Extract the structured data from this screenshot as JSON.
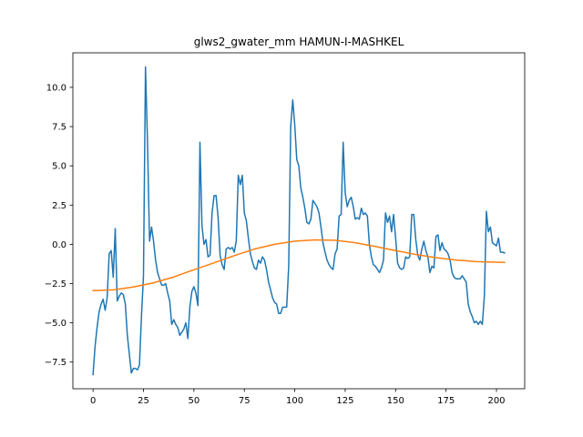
{
  "chart_data": {
    "type": "line",
    "title": "glws2_gwater_mm HAMUN-I-MASHKEL",
    "xlabel": "",
    "ylabel": "",
    "xlim": [
      -10,
      214
    ],
    "ylim": [
      -9.2,
      12.2
    ],
    "xticks": [
      0,
      25,
      50,
      75,
      100,
      125,
      150,
      175,
      200
    ],
    "yticks": [
      -7.5,
      -5.0,
      -2.5,
      0.0,
      2.5,
      5.0,
      7.5,
      10.0
    ],
    "ytick_labels": [
      "−7.5",
      "−5.0",
      "−2.5",
      "0.0",
      "2.5",
      "5.0",
      "7.5",
      "10.0"
    ],
    "grid": false,
    "series": [
      {
        "color": "#1f77b4",
        "points": [
          [
            0,
            -8.3
          ],
          [
            1,
            -6.5
          ],
          [
            2,
            -5.3
          ],
          [
            3,
            -4.3
          ],
          [
            4,
            -3.8
          ],
          [
            5,
            -3.5
          ],
          [
            6,
            -4.2
          ],
          [
            7,
            -3.4
          ],
          [
            8,
            -0.6
          ],
          [
            9,
            -0.4
          ],
          [
            10,
            -2.1
          ],
          [
            11,
            1.0
          ],
          [
            12,
            -3.6
          ],
          [
            13,
            -3.3
          ],
          [
            14,
            -3.1
          ],
          [
            15,
            -3.2
          ],
          [
            16,
            -3.8
          ],
          [
            17,
            -5.8
          ],
          [
            18,
            -7.0
          ],
          [
            19,
            -8.2
          ],
          [
            20,
            -7.9
          ],
          [
            21,
            -7.9
          ],
          [
            22,
            -8.0
          ],
          [
            23,
            -7.7
          ],
          [
            24,
            -4.6
          ],
          [
            25,
            -2.0
          ],
          [
            26,
            11.3
          ],
          [
            27,
            6.5
          ],
          [
            28,
            0.2
          ],
          [
            29,
            1.1
          ],
          [
            30,
            0.2
          ],
          [
            31,
            -1.0
          ],
          [
            32,
            -1.8
          ],
          [
            33,
            -2.2
          ],
          [
            34,
            -2.6
          ],
          [
            35,
            -2.6
          ],
          [
            36,
            -2.5
          ],
          [
            37,
            -3.1
          ],
          [
            38,
            -3.6
          ],
          [
            39,
            -5.1
          ],
          [
            40,
            -4.8
          ],
          [
            41,
            -5.1
          ],
          [
            42,
            -5.3
          ],
          [
            43,
            -5.8
          ],
          [
            44,
            -5.6
          ],
          [
            45,
            -5.4
          ],
          [
            46,
            -5.0
          ],
          [
            47,
            -6.0
          ],
          [
            48,
            -4.0
          ],
          [
            49,
            -3.0
          ],
          [
            50,
            -2.7
          ],
          [
            51,
            -3.1
          ],
          [
            52,
            -3.9
          ],
          [
            53,
            6.5
          ],
          [
            54,
            1.2
          ],
          [
            55,
            0.0
          ],
          [
            56,
            0.3
          ],
          [
            57,
            -0.8
          ],
          [
            58,
            -0.7
          ],
          [
            59,
            2.0
          ],
          [
            60,
            3.1
          ],
          [
            61,
            3.1
          ],
          [
            62,
            1.7
          ],
          [
            63,
            -0.7
          ],
          [
            64,
            -1.3
          ],
          [
            65,
            -1.6
          ],
          [
            66,
            -0.3
          ],
          [
            67,
            -0.2
          ],
          [
            68,
            -0.3
          ],
          [
            69,
            -0.2
          ],
          [
            70,
            -0.5
          ],
          [
            71,
            0.2
          ],
          [
            72,
            4.4
          ],
          [
            73,
            3.8
          ],
          [
            74,
            4.4
          ],
          [
            75,
            2.0
          ],
          [
            76,
            1.5
          ],
          [
            77,
            0.4
          ],
          [
            78,
            -0.6
          ],
          [
            79,
            -1.1
          ],
          [
            80,
            -1.5
          ],
          [
            81,
            -1.6
          ],
          [
            82,
            -1.0
          ],
          [
            83,
            -1.2
          ],
          [
            84,
            -0.8
          ],
          [
            85,
            -1.0
          ],
          [
            86,
            -1.6
          ],
          [
            87,
            -2.4
          ],
          [
            88,
            -2.9
          ],
          [
            89,
            -3.4
          ],
          [
            90,
            -3.7
          ],
          [
            91,
            -3.8
          ],
          [
            92,
            -4.4
          ],
          [
            93,
            -4.4
          ],
          [
            94,
            -4.0
          ],
          [
            95,
            -4.0
          ],
          [
            96,
            -4.0
          ],
          [
            97,
            -1.4
          ],
          [
            98,
            7.5
          ],
          [
            99,
            9.2
          ],
          [
            100,
            7.6
          ],
          [
            101,
            5.4
          ],
          [
            102,
            5.0
          ],
          [
            103,
            3.6
          ],
          [
            104,
            3.0
          ],
          [
            105,
            2.3
          ],
          [
            106,
            1.4
          ],
          [
            107,
            1.3
          ],
          [
            108,
            1.6
          ],
          [
            109,
            2.8
          ],
          [
            110,
            2.6
          ],
          [
            111,
            2.4
          ],
          [
            112,
            2.0
          ],
          [
            113,
            1.1
          ],
          [
            114,
            0.1
          ],
          [
            115,
            -0.5
          ],
          [
            116,
            -1.0
          ],
          [
            117,
            -1.3
          ],
          [
            118,
            -1.5
          ],
          [
            119,
            -1.6
          ],
          [
            120,
            -0.6
          ],
          [
            121,
            -0.3
          ],
          [
            122,
            1.8
          ],
          [
            123,
            1.9
          ],
          [
            124,
            6.5
          ],
          [
            125,
            3.3
          ],
          [
            126,
            2.4
          ],
          [
            127,
            2.8
          ],
          [
            128,
            3.0
          ],
          [
            129,
            2.4
          ],
          [
            130,
            1.6
          ],
          [
            131,
            1.7
          ],
          [
            132,
            1.6
          ],
          [
            133,
            2.3
          ],
          [
            134,
            1.9
          ],
          [
            135,
            2.0
          ],
          [
            136,
            1.8
          ],
          [
            137,
            0.0
          ],
          [
            138,
            -0.8
          ],
          [
            139,
            -1.3
          ],
          [
            140,
            -1.4
          ],
          [
            141,
            -1.6
          ],
          [
            142,
            -1.8
          ],
          [
            143,
            -1.5
          ],
          [
            144,
            -1.0
          ],
          [
            145,
            2.0
          ],
          [
            146,
            1.4
          ],
          [
            147,
            1.8
          ],
          [
            148,
            0.8
          ],
          [
            149,
            1.9
          ],
          [
            150,
            0.4
          ],
          [
            151,
            -1.2
          ],
          [
            152,
            -1.5
          ],
          [
            153,
            -1.6
          ],
          [
            154,
            -1.5
          ],
          [
            155,
            -0.8
          ],
          [
            156,
            -0.9
          ],
          [
            157,
            -0.8
          ],
          [
            158,
            1.9
          ],
          [
            159,
            1.9
          ],
          [
            160,
            0.3
          ],
          [
            161,
            -0.7
          ],
          [
            162,
            -1.0
          ],
          [
            163,
            -0.3
          ],
          [
            164,
            0.2
          ],
          [
            165,
            -0.4
          ],
          [
            166,
            -0.8
          ],
          [
            167,
            -1.8
          ],
          [
            168,
            -1.4
          ],
          [
            169,
            -1.5
          ],
          [
            170,
            0.5
          ],
          [
            171,
            0.6
          ],
          [
            172,
            -0.4
          ],
          [
            173,
            0.1
          ],
          [
            174,
            -0.3
          ],
          [
            175,
            -0.4
          ],
          [
            176,
            -0.6
          ],
          [
            177,
            -1.0
          ],
          [
            178,
            -1.8
          ],
          [
            179,
            -2.1
          ],
          [
            180,
            -2.2
          ],
          [
            181,
            -2.2
          ],
          [
            182,
            -2.2
          ],
          [
            183,
            -2.0
          ],
          [
            184,
            -2.2
          ],
          [
            185,
            -2.4
          ],
          [
            186,
            -3.8
          ],
          [
            187,
            -4.3
          ],
          [
            188,
            -4.6
          ],
          [
            189,
            -5.0
          ],
          [
            190,
            -4.9
          ],
          [
            191,
            -5.1
          ],
          [
            192,
            -4.9
          ],
          [
            193,
            -5.1
          ],
          [
            194,
            -3.3
          ],
          [
            195,
            2.1
          ],
          [
            196,
            0.8
          ],
          [
            197,
            1.1
          ],
          [
            198,
            0.1
          ],
          [
            199,
            0.0
          ],
          [
            200,
            -0.1
          ],
          [
            201,
            0.4
          ],
          [
            202,
            -0.5
          ],
          [
            203,
            -0.5
          ],
          [
            204,
            -0.55
          ]
        ]
      },
      {
        "color": "#ff7f0e",
        "points": [
          [
            0,
            -2.95
          ],
          [
            10,
            -2.9
          ],
          [
            20,
            -2.72
          ],
          [
            30,
            -2.45
          ],
          [
            40,
            -2.08
          ],
          [
            50,
            -1.62
          ],
          [
            60,
            -1.18
          ],
          [
            70,
            -0.72
          ],
          [
            80,
            -0.3
          ],
          [
            90,
            0.0
          ],
          [
            100,
            0.2
          ],
          [
            110,
            0.28
          ],
          [
            120,
            0.26
          ],
          [
            130,
            0.1
          ],
          [
            140,
            -0.14
          ],
          [
            150,
            -0.4
          ],
          [
            160,
            -0.65
          ],
          [
            170,
            -0.85
          ],
          [
            180,
            -1.0
          ],
          [
            190,
            -1.1
          ],
          [
            200,
            -1.14
          ],
          [
            204,
            -1.15
          ]
        ]
      }
    ]
  }
}
